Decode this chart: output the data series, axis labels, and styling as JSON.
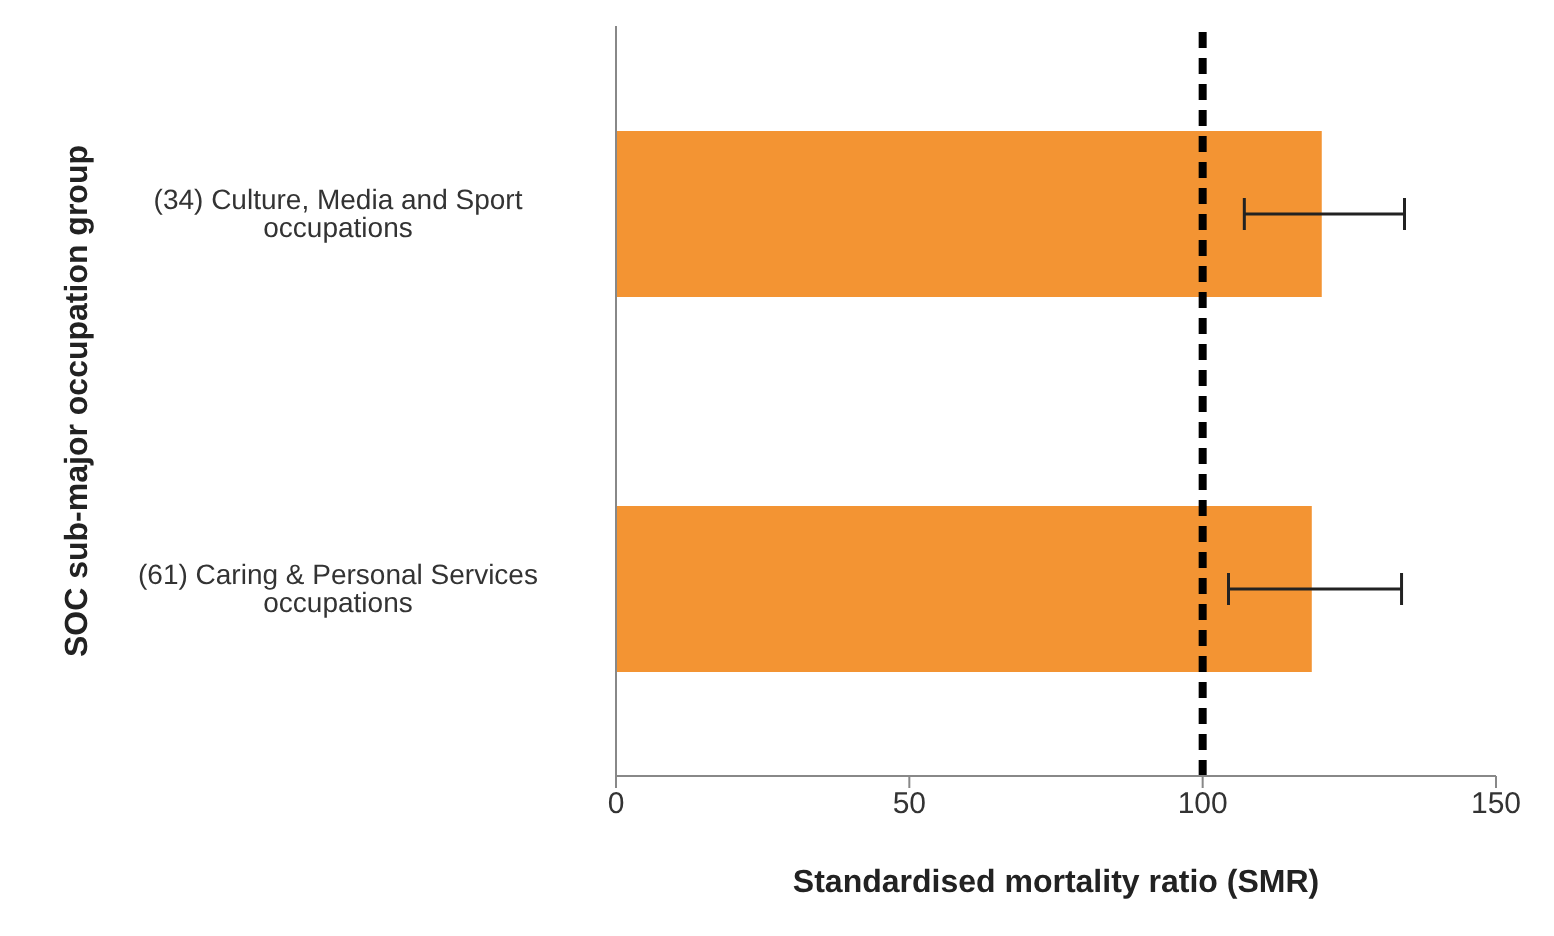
{
  "chart_data": {
    "type": "bar",
    "orientation": "horizontal",
    "xlabel": "Standardised mortality ratio (SMR)",
    "ylabel": "SOC sub-major occupation group",
    "categories": [
      "(34) Culture, Media and Sport occupations",
      "(61) Caring & Personal Services occupations"
    ],
    "values": [
      120.3,
      118.6
    ],
    "color": "#f39433",
    "errors": [
      [
        107.1,
        134.4
      ],
      [
        104.4,
        133.9
      ]
    ],
    "xlim": [
      0,
      150
    ],
    "xticks": [
      0,
      50,
      100,
      150
    ],
    "grid": false,
    "legend": false,
    "ref_lines": [
      {
        "axis": "x",
        "value": 100,
        "color": "#000000",
        "line_style": "dashed"
      }
    ]
  }
}
